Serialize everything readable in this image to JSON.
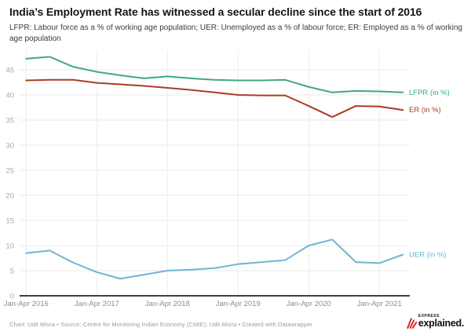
{
  "header": {
    "title": "India’s Employment Rate has witnessed a secular decline since the start of 2016",
    "subtitle": "LFPR: Labour force as a % of working age population;  UER: Unemployed as a % of labour force;  ER: Employed as a % of working age population"
  },
  "chart_data": {
    "type": "line",
    "title": "India’s Employment Rate has witnessed a secular decline since the start of 2016",
    "x": [
      "Jan-Apr 2016",
      "May-Aug 2016",
      "Sep-Dec 2016",
      "Jan-Apr 2017",
      "May-Aug 2017",
      "Sep-Dec 2017",
      "Jan-Apr 2018",
      "May-Aug 2018",
      "Sep-Dec 2018",
      "Jan-Apr 2019",
      "May-Aug 2019",
      "Sep-Dec 2019",
      "Jan-Apr 2020",
      "May-Aug 2020",
      "Sep-Dec 2020",
      "Jan-Apr 2021",
      "May-Aug 2021"
    ],
    "x_tick_labels": [
      "Jan-Apr 2016",
      "Jan-Apr 2017",
      "Jan-Apr 2018",
      "Jan-Apr 2019",
      "Jan-Apr 2020",
      "Jan-Apr 2021"
    ],
    "y_ticks": [
      0,
      5,
      10,
      15,
      20,
      25,
      30,
      35,
      40,
      45
    ],
    "ylim": [
      0,
      49
    ],
    "grid": true,
    "legend_position": "end-of-line-labels",
    "series": [
      {
        "name": "LFPR (in %)",
        "color": "#3fa880",
        "values": [
          47.2,
          47.6,
          45.6,
          44.6,
          43.9,
          43.3,
          43.7,
          43.3,
          43.0,
          42.9,
          42.9,
          43.0,
          41.6,
          40.5,
          40.8,
          40.7,
          40.5
        ]
      },
      {
        "name": "ER (in %)",
        "color": "#ab3d25",
        "values": [
          42.9,
          43.0,
          43.0,
          42.4,
          42.1,
          41.8,
          41.4,
          41.0,
          40.5,
          40.0,
          39.9,
          39.9,
          37.8,
          35.6,
          37.8,
          37.7,
          37.0
        ]
      },
      {
        "name": "UER (in %)",
        "color": "#6fb4d4",
        "values": [
          8.5,
          9.0,
          6.6,
          4.7,
          3.4,
          4.2,
          5.0,
          5.2,
          5.5,
          6.3,
          6.7,
          7.1,
          10.0,
          11.2,
          6.7,
          6.5,
          8.2
        ]
      }
    ],
    "axis_color": "#3f3f3f",
    "gridline_color": "#e9e9e9",
    "y_label_color": "#aaaaaa",
    "x_label_color": "#8d8d8d"
  },
  "footer": {
    "attribution": "Chart: Udit Misra • Source: Centre for Monitoring Indian Economy (CMIE); Udit Misra • Created with Datawrapper",
    "logo": {
      "express": "EXPRESS",
      "explained": "explained."
    }
  }
}
